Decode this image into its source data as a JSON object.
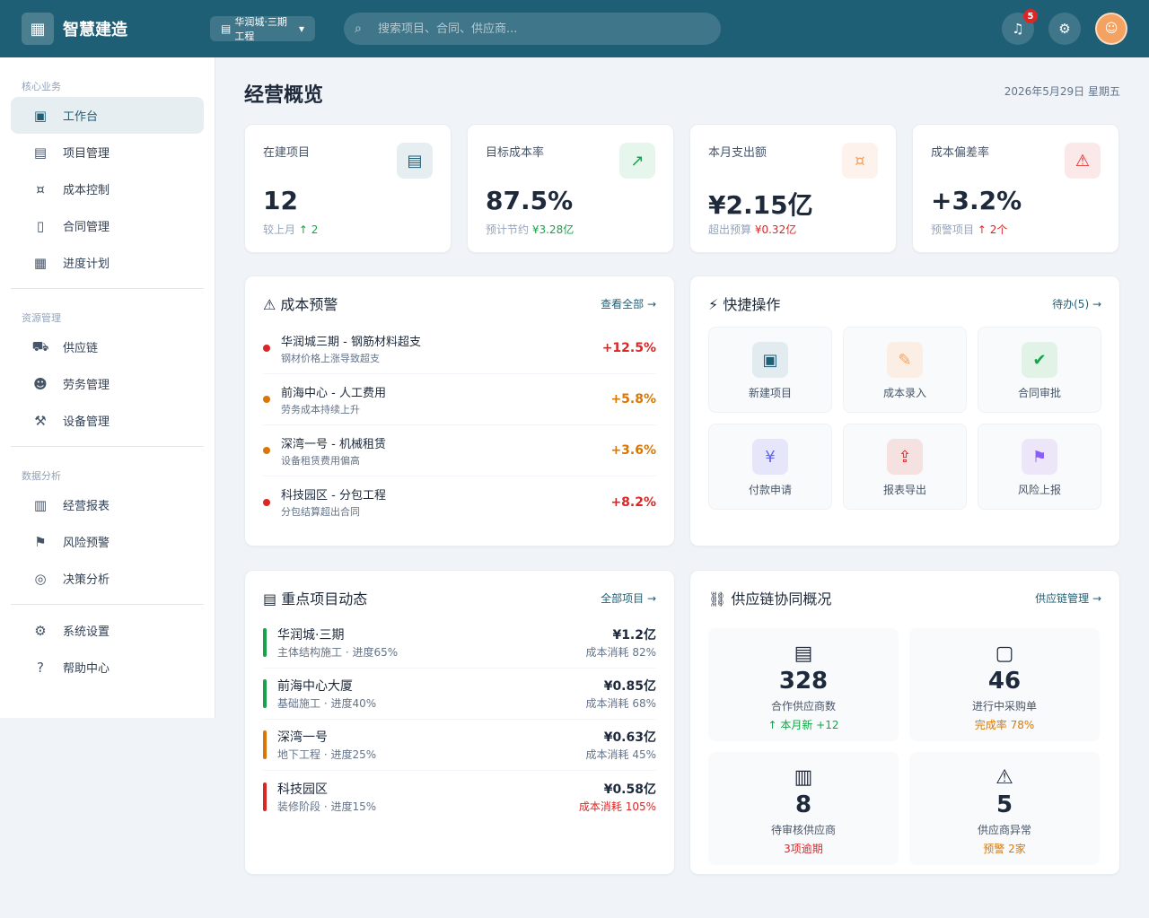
{
  "header": {
    "app_title": "智慧建造",
    "project_selector": "华润城·三期工程",
    "search_placeholder": "搜索项目、合同、供应商...",
    "notifications_count": "5"
  },
  "sidebar": {
    "groups": [
      {
        "label": "核心业务",
        "items": [
          {
            "label": "工作台"
          },
          {
            "label": "项目管理"
          },
          {
            "label": "成本控制"
          },
          {
            "label": "合同管理"
          },
          {
            "label": "进度计划"
          }
        ]
      },
      {
        "label": "资源管理",
        "items": [
          {
            "label": "供应链"
          },
          {
            "label": "劳务管理"
          },
          {
            "label": "设备管理"
          }
        ]
      },
      {
        "label": "数据分析",
        "items": [
          {
            "label": "经营报表"
          },
          {
            "label": "风险预警"
          },
          {
            "label": "决策分析"
          }
        ]
      }
    ],
    "bottom_items": [
      {
        "label": "系统设置"
      },
      {
        "label": "帮助中心"
      }
    ]
  },
  "page": {
    "title": "经营概览",
    "date": "2026年5月29日 星期五"
  },
  "stats": [
    {
      "label": "在建项目",
      "value": "12",
      "sub_prefix": "较上月",
      "sub_delta": "↑ 2"
    },
    {
      "label": "目标成本率",
      "value": "87.5%",
      "sub_prefix": "预计节约",
      "sub_delta": "¥3.28亿"
    },
    {
      "label": "本月支出额",
      "value": "¥2.15亿",
      "sub_prefix": "超出预算",
      "sub_delta": "¥0.32亿"
    },
    {
      "label": "成本偏差率",
      "value": "+3.2%",
      "sub_prefix": "预警项目",
      "sub_delta": "↑ 2个"
    }
  ],
  "risk": {
    "title": "⚠ 成本预警",
    "link": "查看全部 →",
    "items": [
      {
        "title": "华润城三期 - 钢筋材料超支",
        "desc": "钢材价格上涨导致超支",
        "value": "+12.5%"
      },
      {
        "title": "前海中心 - 人工费用",
        "desc": "劳务成本持续上升",
        "value": "+5.8%"
      },
      {
        "title": "深湾一号 - 机械租赁",
        "desc": "设备租赁费用偏高",
        "value": "+3.6%"
      },
      {
        "title": "科技园区 - 分包工程",
        "desc": "分包结算超出合同",
        "value": "+8.2%"
      }
    ]
  },
  "quick": {
    "title": "⚡ 快捷操作",
    "link": "待办(5) →",
    "items": [
      {
        "label": "新建项目"
      },
      {
        "label": "成本录入"
      },
      {
        "label": "合同审批"
      },
      {
        "label": "付款申请"
      },
      {
        "label": "报表导出"
      },
      {
        "label": "风险上报"
      }
    ]
  },
  "projects": {
    "title": "重点项目动态",
    "link": "全部项目 →",
    "items": [
      {
        "name": "华润城·三期",
        "meta": "主体结构施工 · 进度65%",
        "amount": "¥1.2亿",
        "rate": "成本消耗 82%"
      },
      {
        "name": "前海中心大厦",
        "meta": "基础施工 · 进度40%",
        "amount": "¥0.85亿",
        "rate": "成本消耗 68%"
      },
      {
        "name": "深湾一号",
        "meta": "地下工程 · 进度25%",
        "amount": "¥0.63亿",
        "rate": "成本消耗 45%"
      },
      {
        "name": "科技园区",
        "meta": "装修阶段 · 进度15%",
        "amount": "¥0.58亿",
        "rate": "成本消耗 105%"
      }
    ]
  },
  "supply": {
    "title": "供应链协同概况",
    "link": "供应链管理 →",
    "items": [
      {
        "value": "328",
        "label": "合作供应商数",
        "sub": "↑ 本月新 +12"
      },
      {
        "value": "46",
        "label": "进行中采购单",
        "sub": "完成率 78%"
      },
      {
        "value": "8",
        "label": "待审核供应商",
        "sub": "3项逾期"
      },
      {
        "value": "5",
        "label": "供应商异常",
        "sub": "预警 2家"
      }
    ]
  },
  "colors": {
    "brand": "#1f5f75",
    "danger": "#dc2626",
    "warning": "#d97706",
    "success": "#16a34a"
  }
}
